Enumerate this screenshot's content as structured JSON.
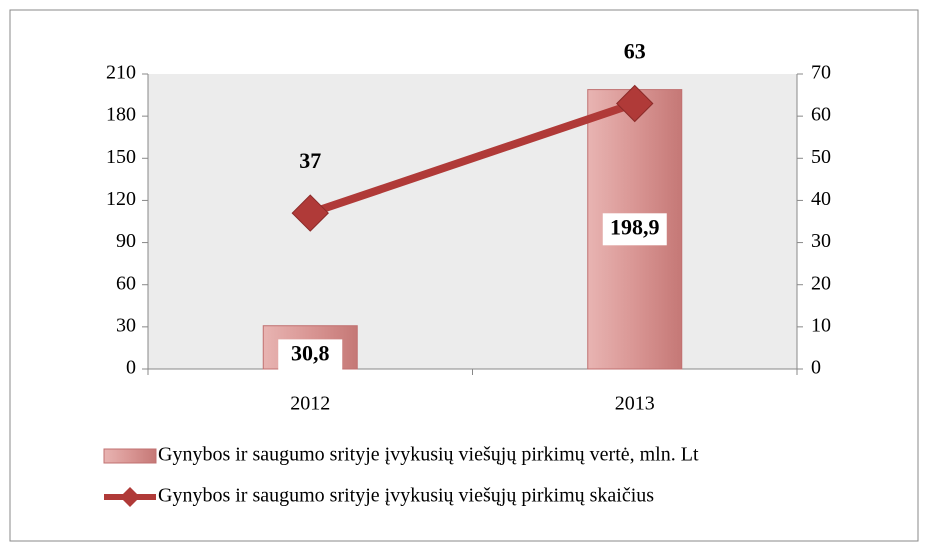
{
  "chart_data": {
    "type": "combo",
    "categories": [
      "2012",
      "2013"
    ],
    "series": [
      {
        "name": "Gynybos ir saugumo srityje įvykusių viešųjų pirkimų vertė, mln. Lt",
        "type": "bar",
        "color": "#d99694",
        "values": [
          30.8,
          198.9
        ],
        "value_labels": [
          "30,8",
          "198,9"
        ]
      },
      {
        "name": "Gynybos ir saugumo srityje įvykusių viešųjų pirkimų skaičius",
        "type": "line",
        "axis": "y2",
        "color": "#b03a38",
        "values": [
          37,
          63
        ]
      }
    ],
    "ylim": [
      0,
      210
    ],
    "yticks": [
      0,
      30,
      60,
      90,
      120,
      150,
      180,
      210
    ],
    "y2lim": [
      0,
      70
    ],
    "y2ticks": [
      0,
      10,
      20,
      30,
      40,
      50,
      60,
      70
    ],
    "legend": "bottom"
  }
}
